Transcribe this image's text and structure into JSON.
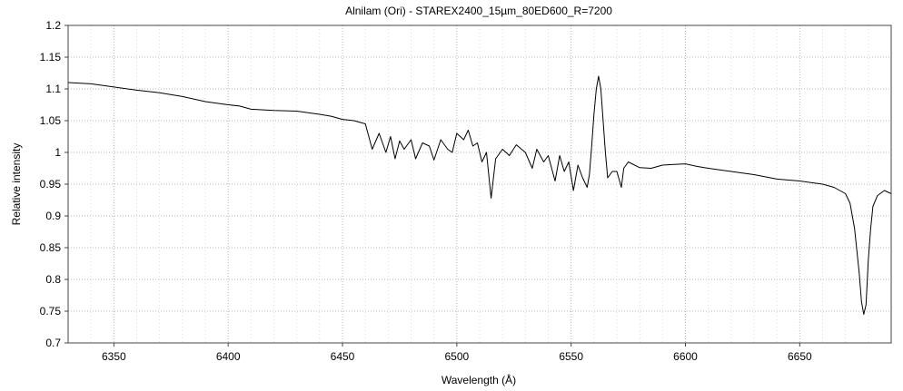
{
  "chart_data": {
    "type": "line",
    "title": "Alnilam (Ori) - STAREX2400_15µm_80ED600_R=7200",
    "xlabel": "Wavelength (Å)",
    "ylabel": "Relative intensity",
    "xlim": [
      6330,
      6690
    ],
    "ylim": [
      0.7,
      1.2
    ],
    "x_ticks": [
      6350,
      6400,
      6450,
      6500,
      6550,
      6600,
      6650
    ],
    "y_ticks": [
      0.7,
      0.75,
      0.8,
      0.85,
      0.9,
      0.95,
      1,
      1.05,
      1.1,
      1.15,
      1.2
    ],
    "x_tick_labels": [
      "6350",
      "6400",
      "6450",
      "6500",
      "6550",
      "6600",
      "6650"
    ],
    "y_tick_labels": [
      "0.7",
      "0.75",
      "0.8",
      "0.85",
      "0.9",
      "0.95",
      "1",
      "1.05",
      "1.1",
      "1.15",
      "1.2"
    ],
    "grid": true,
    "line_color": "#000000",
    "grid_color": "#b4b4b4",
    "series": [
      {
        "values": [
          [
            6330,
            1.11
          ],
          [
            6340,
            1.108
          ],
          [
            6350,
            1.103
          ],
          [
            6360,
            1.098
          ],
          [
            6370,
            1.094
          ],
          [
            6380,
            1.088
          ],
          [
            6390,
            1.08
          ],
          [
            6400,
            1.075
          ],
          [
            6405,
            1.073
          ],
          [
            6410,
            1.068
          ],
          [
            6420,
            1.066
          ],
          [
            6430,
            1.065
          ],
          [
            6440,
            1.06
          ],
          [
            6445,
            1.057
          ],
          [
            6450,
            1.052
          ],
          [
            6455,
            1.05
          ],
          [
            6460,
            1.045
          ],
          [
            6463,
            1.005
          ],
          [
            6466,
            1.03
          ],
          [
            6469,
            1.0
          ],
          [
            6471,
            1.025
          ],
          [
            6473,
            0.99
          ],
          [
            6475,
            1.018
          ],
          [
            6477,
            1.005
          ],
          [
            6480,
            1.02
          ],
          [
            6482,
            0.99
          ],
          [
            6485,
            1.015
          ],
          [
            6488,
            1.01
          ],
          [
            6490,
            0.988
          ],
          [
            6493,
            1.02
          ],
          [
            6496,
            1.005
          ],
          [
            6498,
            1.0
          ],
          [
            6500,
            1.03
          ],
          [
            6503,
            1.02
          ],
          [
            6505,
            1.035
          ],
          [
            6507,
            1.01
          ],
          [
            6509,
            1.015
          ],
          [
            6511,
            0.985
          ],
          [
            6513,
            1.0
          ],
          [
            6515,
            0.928
          ],
          [
            6517,
            0.99
          ],
          [
            6520,
            1.005
          ],
          [
            6523,
            0.995
          ],
          [
            6526,
            1.012
          ],
          [
            6530,
            1.0
          ],
          [
            6533,
            0.975
          ],
          [
            6535,
            1.005
          ],
          [
            6538,
            0.985
          ],
          [
            6540,
            0.995
          ],
          [
            6543,
            0.955
          ],
          [
            6545,
            0.995
          ],
          [
            6547,
            0.97
          ],
          [
            6549,
            0.985
          ],
          [
            6551,
            0.94
          ],
          [
            6553,
            0.98
          ],
          [
            6555,
            0.96
          ],
          [
            6557,
            0.945
          ],
          [
            6558,
            0.965
          ],
          [
            6559,
            1.01
          ],
          [
            6560,
            1.06
          ],
          [
            6561,
            1.1
          ],
          [
            6562,
            1.12
          ],
          [
            6563,
            1.1
          ],
          [
            6564,
            1.05
          ],
          [
            6565,
            1.0
          ],
          [
            6566,
            0.96
          ],
          [
            6568,
            0.97
          ],
          [
            6570,
            0.97
          ],
          [
            6572,
            0.945
          ],
          [
            6573,
            0.975
          ],
          [
            6575,
            0.985
          ],
          [
            6580,
            0.976
          ],
          [
            6585,
            0.975
          ],
          [
            6590,
            0.98
          ],
          [
            6595,
            0.981
          ],
          [
            6600,
            0.982
          ],
          [
            6605,
            0.978
          ],
          [
            6610,
            0.975
          ],
          [
            6620,
            0.97
          ],
          [
            6630,
            0.965
          ],
          [
            6640,
            0.958
          ],
          [
            6650,
            0.955
          ],
          [
            6660,
            0.95
          ],
          [
            6665,
            0.945
          ],
          [
            6670,
            0.935
          ],
          [
            6672,
            0.92
          ],
          [
            6674,
            0.88
          ],
          [
            6676,
            0.81
          ],
          [
            6677,
            0.765
          ],
          [
            6678,
            0.745
          ],
          [
            6679,
            0.76
          ],
          [
            6680,
            0.83
          ],
          [
            6681,
            0.88
          ],
          [
            6682,
            0.915
          ],
          [
            6684,
            0.932
          ],
          [
            6687,
            0.94
          ],
          [
            6690,
            0.935
          ]
        ]
      }
    ]
  }
}
